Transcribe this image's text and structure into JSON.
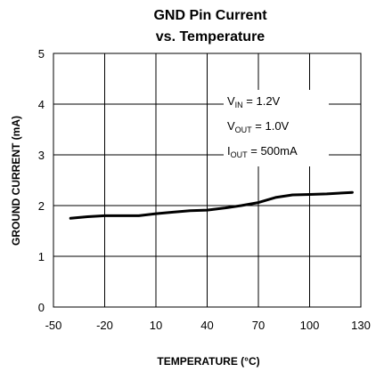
{
  "chart_data": {
    "type": "line",
    "title_lines": [
      "GND Pin Current",
      "vs. Temperature"
    ],
    "xlabel": "TEMPERATURE (°C)",
    "ylabel": "GROUND CURRENT (mA)",
    "xlim": [
      -50,
      130
    ],
    "ylim": [
      0,
      5
    ],
    "x_ticks": [
      -50,
      -20,
      10,
      40,
      70,
      100,
      130
    ],
    "y_ticks": [
      0,
      1,
      2,
      3,
      4,
      5
    ],
    "grid": true,
    "series": [
      {
        "x": [
          -40,
          -30,
          -20,
          -10,
          0,
          10,
          20,
          30,
          40,
          50,
          60,
          70,
          80,
          90,
          100,
          110,
          125
        ],
        "y": [
          1.75,
          1.78,
          1.8,
          1.8,
          1.8,
          1.84,
          1.87,
          1.9,
          1.91,
          1.95,
          2.0,
          2.06,
          2.16,
          2.21,
          2.22,
          2.23,
          2.26
        ]
      }
    ],
    "annotations": [
      {
        "main": "V",
        "sub": "IN",
        "rest": " = 1.2V"
      },
      {
        "main": "V",
        "sub": "OUT",
        "rest": " = 1.0V"
      },
      {
        "main": "I",
        "sub": "OUT",
        "rest": " = 500mA"
      }
    ]
  }
}
